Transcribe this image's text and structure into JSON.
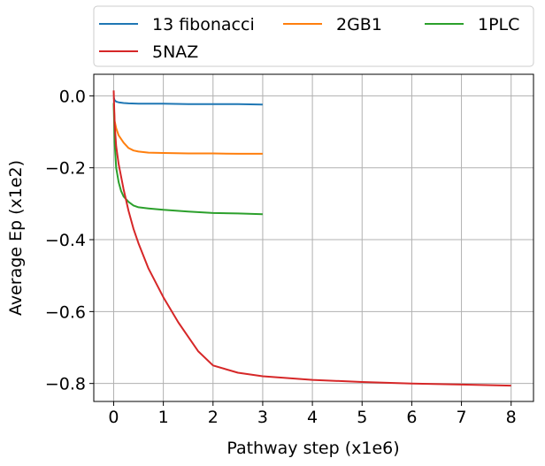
{
  "chart_data": {
    "type": "line",
    "xlabel": "Pathway step (x1e6)",
    "ylabel": "Average Ep (x1e2)",
    "xlim": [
      -0.4,
      8.45
    ],
    "ylim": [
      -0.85,
      0.06
    ],
    "xticks": [
      0,
      1,
      2,
      3,
      4,
      5,
      6,
      7,
      8
    ],
    "xtick_labels": [
      "0",
      "1",
      "2",
      "3",
      "4",
      "5",
      "6",
      "7",
      "8"
    ],
    "yticks": [
      0.0,
      -0.2,
      -0.4,
      -0.6,
      -0.8
    ],
    "ytick_labels": [
      "0.0",
      "−0.2",
      "−0.4",
      "−0.6",
      "−0.8"
    ],
    "grid": true,
    "legend": {
      "placement": "top, above plot",
      "columns": 3
    },
    "series": [
      {
        "name": "13 fibonacci",
        "color": "#1f77b4",
        "x": [
          0,
          0.02,
          0.05,
          0.1,
          0.2,
          0.3,
          0.5,
          0.7,
          1.0,
          1.5,
          2.0,
          2.5,
          3.0
        ],
        "y": [
          -0.005,
          -0.012,
          -0.016,
          -0.018,
          -0.02,
          -0.021,
          -0.022,
          -0.022,
          -0.022,
          -0.023,
          -0.023,
          -0.023,
          -0.024
        ]
      },
      {
        "name": "2GB1",
        "color": "#ff7f0e",
        "x": [
          0,
          0.02,
          0.05,
          0.1,
          0.2,
          0.3,
          0.4,
          0.5,
          0.7,
          1.0,
          1.5,
          2.0,
          2.5,
          3.0
        ],
        "y": [
          -0.02,
          -0.07,
          -0.09,
          -0.11,
          -0.13,
          -0.145,
          -0.152,
          -0.155,
          -0.158,
          -0.159,
          -0.16,
          -0.16,
          -0.161,
          -0.161
        ]
      },
      {
        "name": "1PLC",
        "color": "#2ca02c",
        "x": [
          0,
          0.02,
          0.05,
          0.1,
          0.15,
          0.2,
          0.3,
          0.4,
          0.5,
          0.7,
          1.0,
          1.5,
          2.0,
          2.5,
          3.0
        ],
        "y": [
          -0.02,
          -0.13,
          -0.2,
          -0.24,
          -0.265,
          -0.28,
          -0.295,
          -0.305,
          -0.31,
          -0.313,
          -0.317,
          -0.322,
          -0.326,
          -0.327,
          -0.329
        ]
      },
      {
        "name": "5NAZ",
        "color": "#d62728",
        "x": [
          0,
          0.02,
          0.05,
          0.1,
          0.2,
          0.3,
          0.4,
          0.5,
          0.7,
          1.0,
          1.3,
          1.5,
          1.7,
          2.0,
          2.5,
          3.0,
          4.0,
          5.0,
          6.0,
          7.0,
          8.0
        ],
        "y": [
          0.015,
          -0.08,
          -0.14,
          -0.19,
          -0.26,
          -0.32,
          -0.37,
          -0.41,
          -0.48,
          -0.56,
          -0.63,
          -0.67,
          -0.71,
          -0.75,
          -0.77,
          -0.78,
          -0.79,
          -0.796,
          -0.8,
          -0.803,
          -0.806
        ]
      }
    ]
  }
}
